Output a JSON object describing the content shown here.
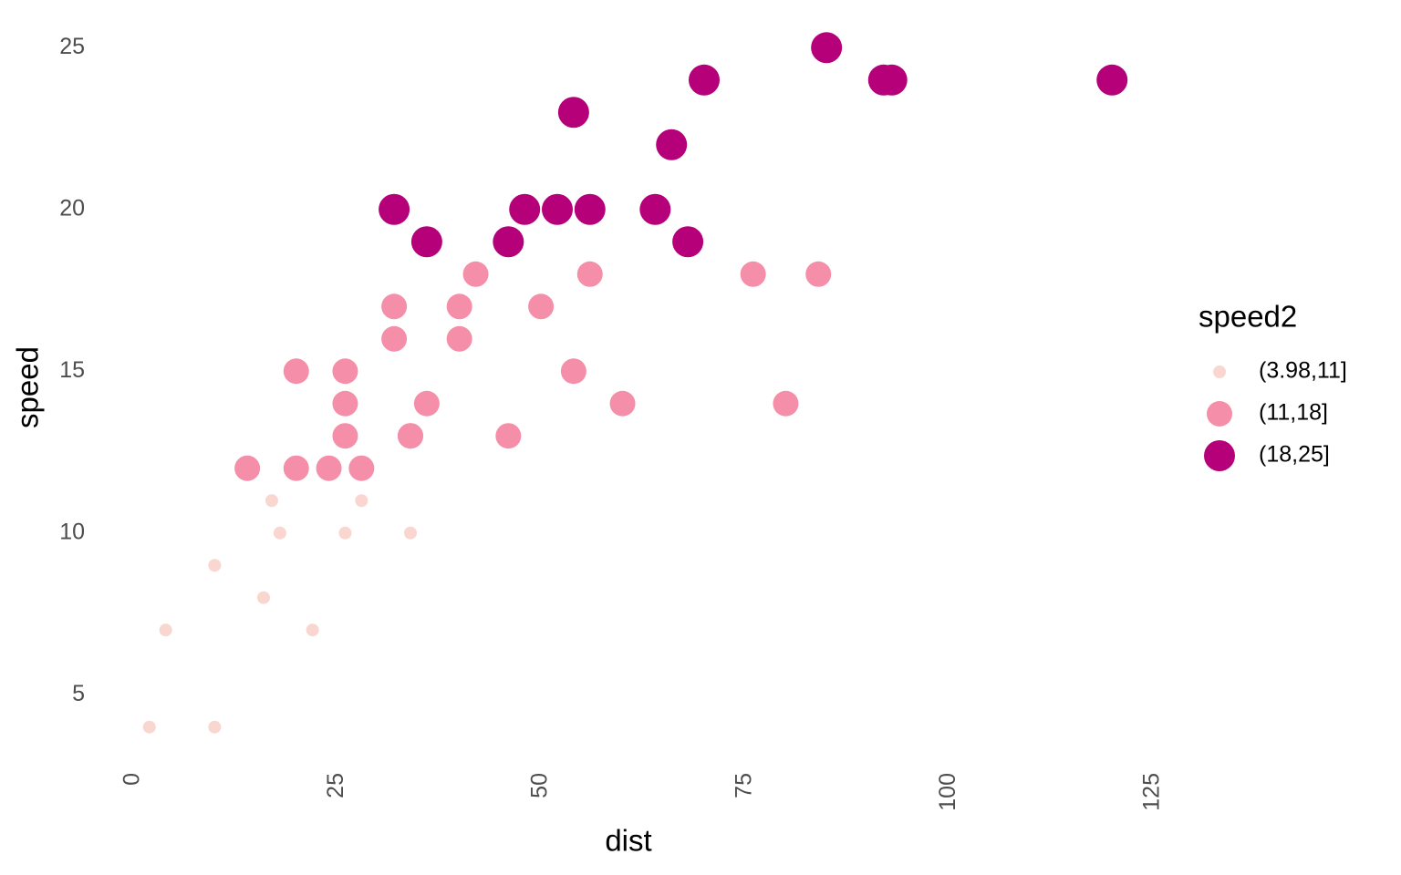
{
  "chart_data": {
    "type": "scatter",
    "x_label": "dist",
    "y_label": "speed",
    "legend_title": "speed2",
    "xlim": [
      -3.9,
      125.9
    ],
    "ylim": [
      2.95,
      26.05
    ],
    "xticks": [
      0,
      25,
      50,
      75,
      100,
      125
    ],
    "yticks": [
      5,
      10,
      15,
      20,
      25
    ],
    "grid": false,
    "legend": "right",
    "series": [
      {
        "name": "(3.98,11]",
        "color": "#fad6d0",
        "x": [
          2,
          10,
          4,
          22,
          16,
          10,
          18,
          26,
          34,
          17,
          28
        ],
        "values": [
          4,
          4,
          7,
          7,
          8,
          9,
          10,
          10,
          10,
          11,
          11
        ]
      },
      {
        "name": "(11,18]",
        "color": "#f58fa9",
        "x": [
          14,
          20,
          24,
          28,
          26,
          34,
          34,
          46,
          26,
          36,
          60,
          80,
          20,
          26,
          54,
          32,
          40,
          32,
          40,
          50,
          42,
          56,
          76,
          84
        ],
        "values": [
          12,
          12,
          12,
          12,
          13,
          13,
          13,
          13,
          14,
          14,
          14,
          14,
          15,
          15,
          15,
          16,
          16,
          17,
          17,
          17,
          18,
          18,
          18,
          18
        ]
      },
      {
        "name": "(18,25]",
        "color": "#b5007a",
        "x": [
          36,
          46,
          68,
          32,
          48,
          52,
          56,
          64,
          66,
          54,
          70,
          92,
          93,
          120,
          85
        ],
        "values": [
          19,
          19,
          19,
          20,
          20,
          20,
          20,
          20,
          22,
          23,
          24,
          24,
          24,
          24,
          25
        ]
      }
    ]
  }
}
